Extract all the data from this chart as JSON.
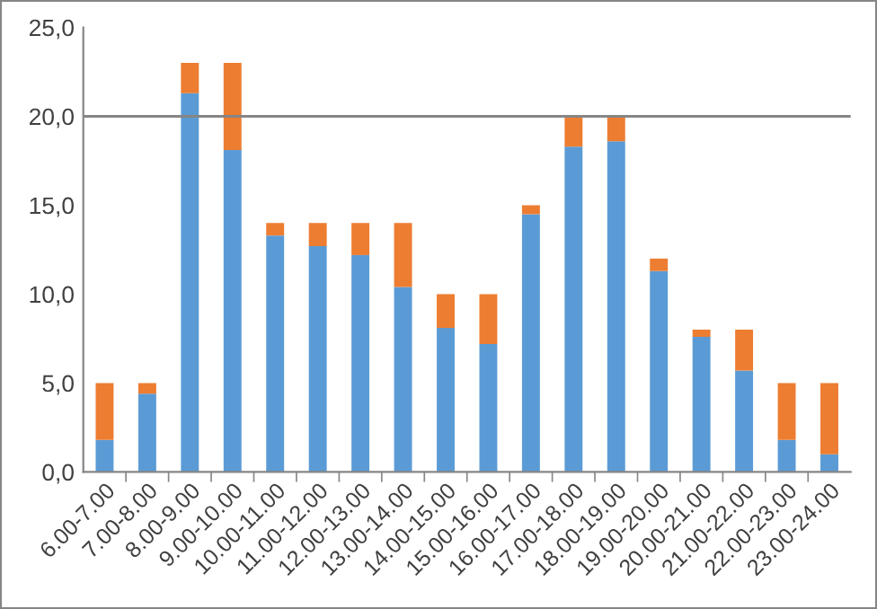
{
  "chart_data": {
    "type": "bar",
    "stacked": true,
    "categories": [
      "6.00-7.00",
      "7.00-8.00",
      "8.00-9.00",
      "9.00-10.00",
      "10.00-11.00",
      "11.00-12.00",
      "12.00-13.00",
      "13.00-14.00",
      "14.00-15.00",
      "15.00-16.00",
      "16.00-17.00",
      "17.00-18.00",
      "18.00-19.00",
      "19.00-20.00",
      "20.00-21.00",
      "21.00-22.00",
      "22.00-23.00",
      "23.00-24.00"
    ],
    "series": [
      {
        "color": "#5b9bd5",
        "values": [
          1.8,
          4.4,
          21.3,
          18.1,
          13.3,
          12.7,
          12.2,
          10.4,
          8.1,
          7.2,
          14.5,
          18.3,
          18.6,
          11.3,
          7.6,
          5.7,
          1.8,
          1.0
        ]
      },
      {
        "color": "#ed7d31",
        "values": [
          3.2,
          0.6,
          1.7,
          4.9,
          0.7,
          1.3,
          1.8,
          3.6,
          1.9,
          2.8,
          0.5,
          1.7,
          1.4,
          0.7,
          0.4,
          2.3,
          3.2,
          4.0
        ]
      }
    ],
    "ylim": [
      0,
      25
    ],
    "yticks": [
      {
        "value": 0,
        "label": "0,0"
      },
      {
        "value": 5,
        "label": "5,0"
      },
      {
        "value": 10,
        "label": "10,0"
      },
      {
        "value": 15,
        "label": "15,0"
      },
      {
        "value": 20,
        "label": "20,0"
      },
      {
        "value": 25,
        "label": "25,0"
      }
    ],
    "ref_lines": [
      {
        "axis": "y",
        "value": 20,
        "color": "#868686"
      }
    ],
    "grid": false,
    "legend": false
  }
}
